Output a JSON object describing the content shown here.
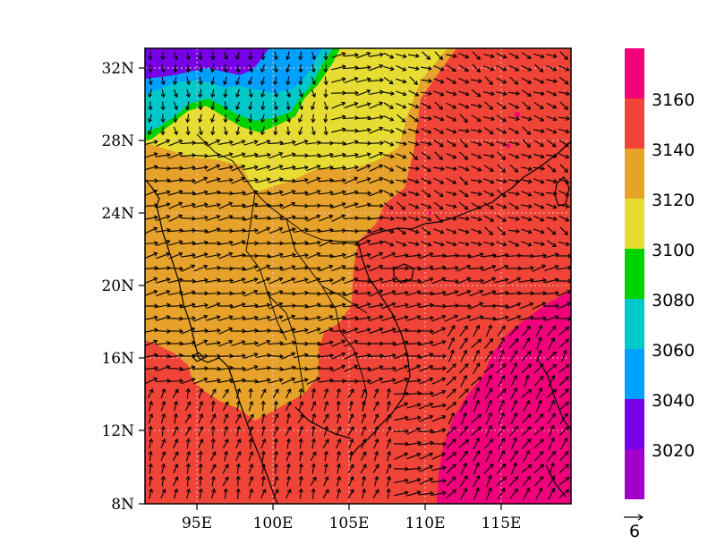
{
  "map": {
    "x_ticks": [
      "95E",
      "100E",
      "105E",
      "110E",
      "115E"
    ],
    "y_ticks": [
      "8N",
      "12N",
      "16N",
      "20N",
      "24N",
      "28N",
      "32N"
    ],
    "colorbar_labels": [
      "3160",
      "3140",
      "3120",
      "3100",
      "3080",
      "3060",
      "3040",
      "3020"
    ],
    "colorbar_colors": [
      "#f0007a",
      "#f04438",
      "#e6a22a",
      "#e6dc32",
      "#00d200",
      "#00c8c8",
      "#00a0ff",
      "#7800e6",
      "#a000c8"
    ],
    "reference_vector_label": "6",
    "lon_range": [
      91,
      119.5
    ],
    "lat_range": [
      8,
      33
    ]
  }
}
